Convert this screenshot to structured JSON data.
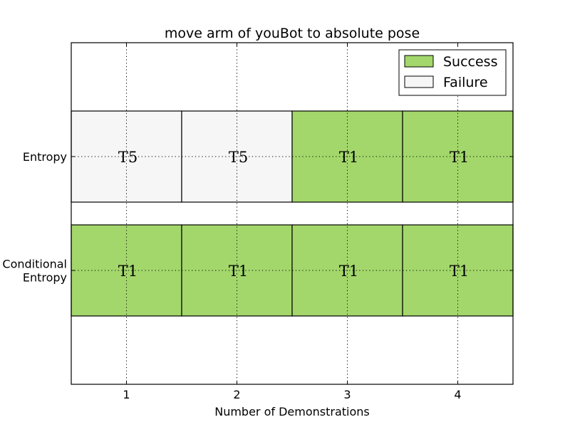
{
  "chart_data": {
    "type": "bar",
    "orientation": "horizontal",
    "title": "move arm of youBot to absolute pose",
    "xlabel": "Number of Demonstrations",
    "ylabel": "",
    "x_ticks": [
      1,
      2,
      3,
      4
    ],
    "xlim": [
      0.5,
      4.5
    ],
    "grid": true,
    "legend_placement": "top-right",
    "legend": [
      {
        "name": "Success",
        "color": "#a3d76b"
      },
      {
        "name": "Failure",
        "color": "#f6f6f6"
      }
    ],
    "rows": [
      {
        "label": [
          "Entropy"
        ],
        "cells": [
          {
            "x": 1,
            "label": "T5",
            "outcome": "Failure"
          },
          {
            "x": 2,
            "label": "T5",
            "outcome": "Failure"
          },
          {
            "x": 3,
            "label": "T1",
            "outcome": "Success"
          },
          {
            "x": 4,
            "label": "T1",
            "outcome": "Success"
          }
        ]
      },
      {
        "label": [
          "Conditional",
          "Entropy"
        ],
        "cells": [
          {
            "x": 1,
            "label": "T1",
            "outcome": "Success"
          },
          {
            "x": 2,
            "label": "T1",
            "outcome": "Success"
          },
          {
            "x": 3,
            "label": "T1",
            "outcome": "Success"
          },
          {
            "x": 4,
            "label": "T1",
            "outcome": "Success"
          }
        ]
      }
    ]
  }
}
